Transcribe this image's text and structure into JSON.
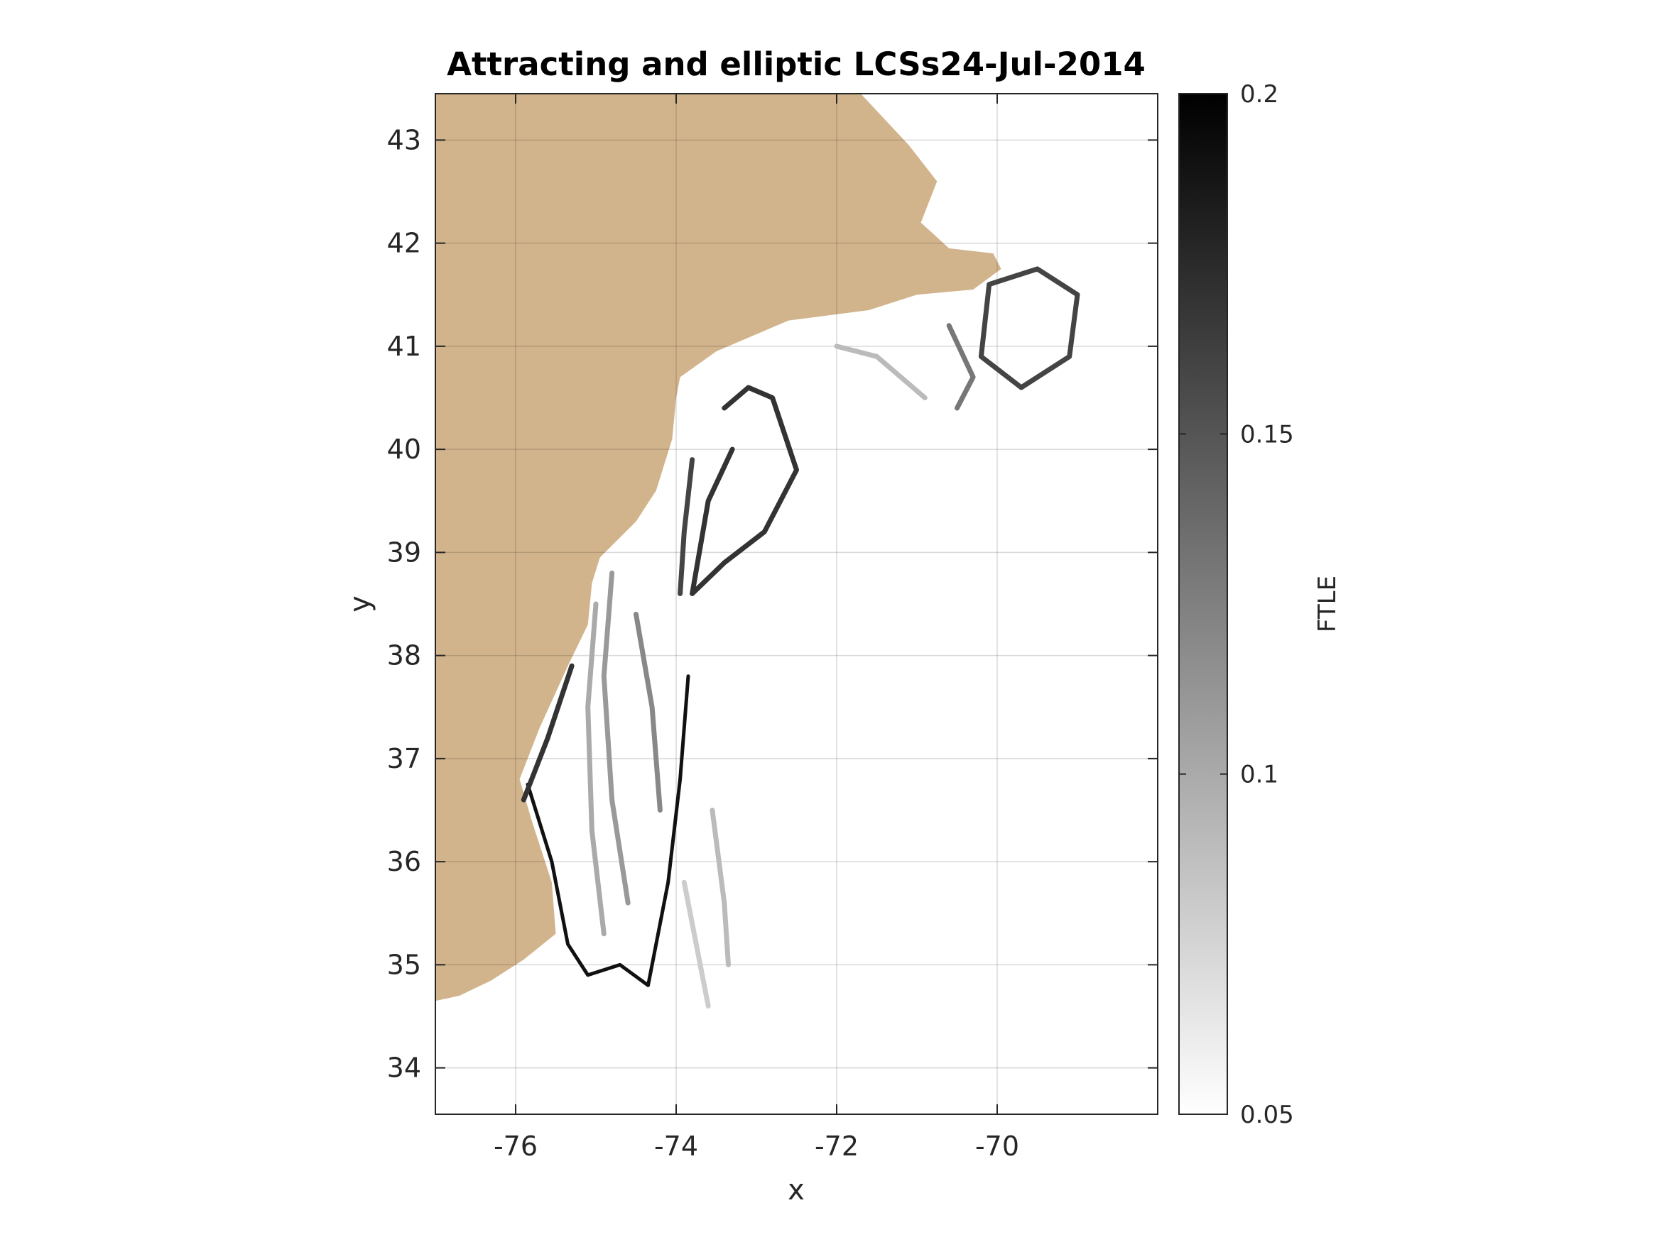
{
  "chart_data": {
    "type": "heatmap",
    "title": "Attracting and elliptic LCSs24-Jul-2014",
    "xlabel": "x",
    "ylabel": "y",
    "xlim": [
      -77,
      -68.0
    ],
    "ylim": [
      33.55,
      43.45
    ],
    "xticks": [
      -76,
      -74,
      -72,
      -70
    ],
    "yticks": [
      34,
      35,
      36,
      37,
      38,
      39,
      40,
      41,
      42,
      43
    ],
    "xtick_labels": [
      "-76",
      "-74",
      "-72",
      "-70"
    ],
    "ytick_labels": [
      "34",
      "35",
      "36",
      "37",
      "38",
      "39",
      "40",
      "41",
      "42",
      "43"
    ],
    "grid": true,
    "colorbar": {
      "label": "FTLE",
      "limits": [
        0.05,
        0.2
      ],
      "ticks": [
        0.05,
        0.1,
        0.15,
        0.2
      ],
      "tick_labels": [
        "0.05",
        "0.1",
        "0.15",
        "0.2"
      ],
      "colormap": "gray (white to black)"
    },
    "land_color": "#d2b48c",
    "land_outline": [
      [
        -77,
        43.45
      ],
      [
        -76.1,
        43.45
      ],
      [
        -72.6,
        43.45
      ],
      [
        -71.7,
        43.45
      ],
      [
        -71.1,
        42.95
      ],
      [
        -70.75,
        42.6
      ],
      [
        -70.95,
        42.2
      ],
      [
        -70.6,
        41.95
      ],
      [
        -70.05,
        41.9
      ],
      [
        -69.95,
        41.75
      ],
      [
        -70.3,
        41.55
      ],
      [
        -71.0,
        41.5
      ],
      [
        -71.6,
        41.35
      ],
      [
        -72.6,
        41.25
      ],
      [
        -73.5,
        40.95
      ],
      [
        -73.95,
        40.7
      ],
      [
        -74.0,
        40.5
      ],
      [
        -74.05,
        40.1
      ],
      [
        -74.25,
        39.6
      ],
      [
        -74.5,
        39.3
      ],
      [
        -74.95,
        38.95
      ],
      [
        -75.05,
        38.7
      ],
      [
        -75.1,
        38.3
      ],
      [
        -75.35,
        37.9
      ],
      [
        -75.7,
        37.3
      ],
      [
        -75.95,
        36.8
      ],
      [
        -75.8,
        36.4
      ],
      [
        -75.55,
        35.8
      ],
      [
        -75.5,
        35.3
      ],
      [
        -75.9,
        35.05
      ],
      [
        -76.3,
        34.85
      ],
      [
        -76.7,
        34.7
      ],
      [
        -77,
        34.65
      ]
    ],
    "ftle_ridges": [
      {
        "ftle": 0.19,
        "points": [
          [
            -75.85,
            36.75
          ],
          [
            -75.55,
            36.0
          ],
          [
            -75.35,
            35.2
          ],
          [
            -75.1,
            34.9
          ],
          [
            -74.7,
            35.0
          ],
          [
            -74.35,
            34.8
          ],
          [
            -74.1,
            35.8
          ],
          [
            -73.95,
            36.8
          ],
          [
            -73.85,
            37.8
          ]
        ]
      },
      {
        "ftle": 0.17,
        "points": [
          [
            -75.9,
            36.6
          ],
          [
            -75.6,
            37.2
          ],
          [
            -75.3,
            37.9
          ]
        ]
      },
      {
        "ftle": 0.17,
        "points": [
          [
            -73.4,
            40.4
          ],
          [
            -73.1,
            40.6
          ],
          [
            -72.8,
            40.5
          ],
          [
            -72.5,
            39.8
          ],
          [
            -72.9,
            39.2
          ],
          [
            -73.4,
            38.9
          ],
          [
            -73.8,
            38.6
          ],
          [
            -73.6,
            39.5
          ],
          [
            -73.3,
            40.0
          ]
        ]
      },
      {
        "ftle": 0.16,
        "points": [
          [
            -73.8,
            39.9
          ],
          [
            -73.9,
            39.2
          ],
          [
            -73.95,
            38.6
          ]
        ]
      },
      {
        "ftle": 0.16,
        "points": [
          [
            -70.1,
            41.6
          ],
          [
            -69.5,
            41.75
          ],
          [
            -69.0,
            41.5
          ],
          [
            -69.1,
            40.9
          ],
          [
            -69.7,
            40.6
          ],
          [
            -70.2,
            40.9
          ],
          [
            -70.1,
            41.6
          ]
        ]
      },
      {
        "ftle": 0.13,
        "points": [
          [
            -70.6,
            41.2
          ],
          [
            -70.3,
            40.7
          ],
          [
            -70.5,
            40.4
          ]
        ]
      },
      {
        "ftle": 0.12,
        "points": [
          [
            -74.5,
            38.4
          ],
          [
            -74.3,
            37.5
          ],
          [
            -74.2,
            36.5
          ]
        ]
      },
      {
        "ftle": 0.11,
        "points": [
          [
            -74.8,
            38.8
          ],
          [
            -74.9,
            37.8
          ],
          [
            -74.8,
            36.6
          ],
          [
            -74.6,
            35.6
          ]
        ]
      },
      {
        "ftle": 0.1,
        "points": [
          [
            -75.0,
            38.5
          ],
          [
            -75.1,
            37.5
          ],
          [
            -75.05,
            36.3
          ],
          [
            -74.9,
            35.3
          ]
        ]
      },
      {
        "ftle": 0.09,
        "points": [
          [
            -73.55,
            36.5
          ],
          [
            -73.4,
            35.6
          ],
          [
            -73.35,
            35.0
          ]
        ]
      },
      {
        "ftle": 0.09,
        "points": [
          [
            -72.0,
            41.0
          ],
          [
            -71.5,
            40.9
          ],
          [
            -71.2,
            40.7
          ],
          [
            -70.9,
            40.5
          ]
        ]
      },
      {
        "ftle": 0.08,
        "points": [
          [
            -73.9,
            35.8
          ],
          [
            -73.7,
            35.0
          ],
          [
            -73.6,
            34.6
          ]
        ]
      }
    ]
  }
}
